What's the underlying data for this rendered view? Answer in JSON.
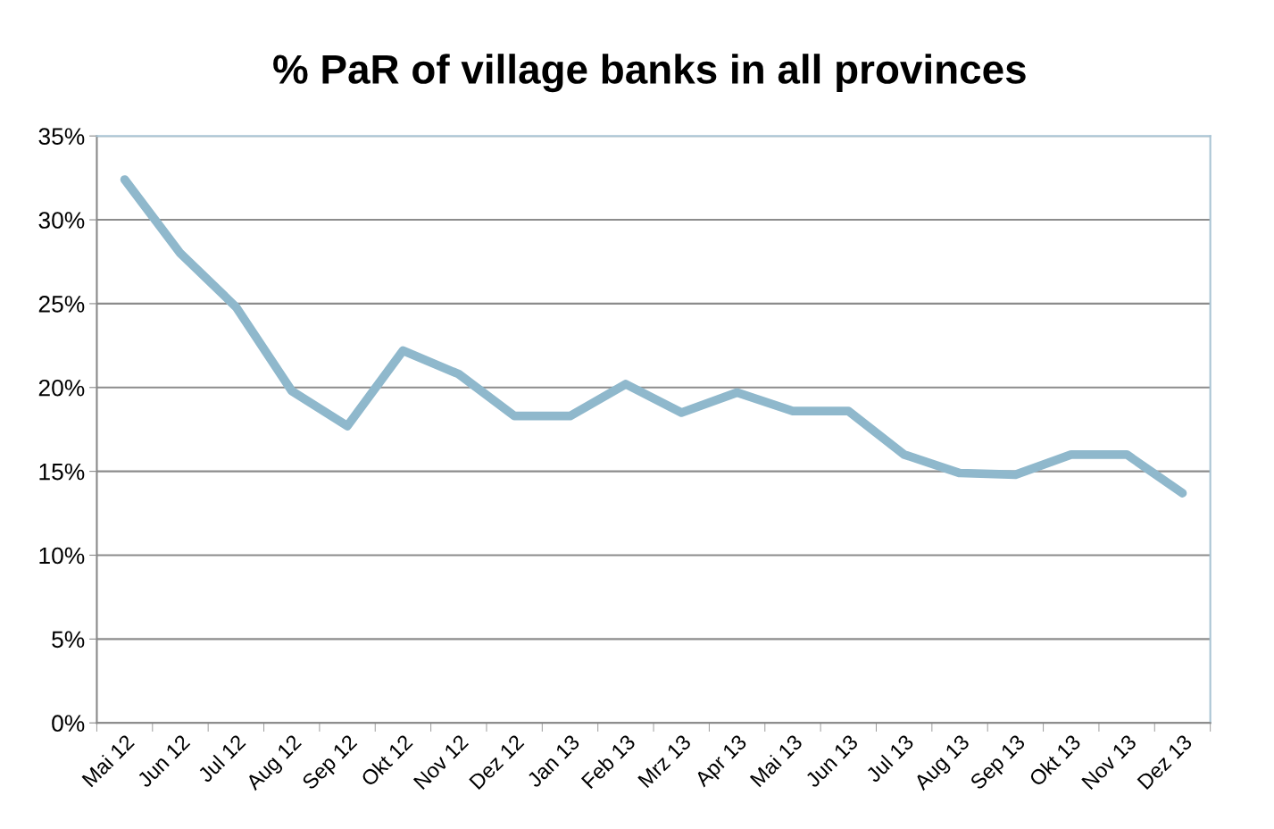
{
  "chart_data": {
    "type": "line",
    "title": "% PaR of village banks in all provinces",
    "categories": [
      "Mai 12",
      "Jun 12",
      "Jul 12",
      "Aug 12",
      "Sep 12",
      "Okt 12",
      "Nov 12",
      "Dez 12",
      "Jan 13",
      "Feb 13",
      "Mrz 13",
      "Apr 13",
      "Mai 13",
      "Jun 13",
      "Jul 13",
      "Aug 13",
      "Sep 13",
      "Okt 13",
      "Nov 13",
      "Dez 13"
    ],
    "series": [
      {
        "color": "#8fb8cc",
        "values": [
          32.4,
          28.0,
          24.8,
          19.8,
          17.7,
          22.2,
          20.8,
          18.3,
          18.3,
          20.2,
          18.5,
          19.7,
          18.6,
          18.6,
          16.0,
          14.9,
          14.8,
          16.0,
          16.0,
          13.7
        ]
      }
    ],
    "ylim": [
      0,
      35
    ],
    "yticks": [
      {
        "value": 0,
        "label": "0%"
      },
      {
        "value": 5,
        "label": "5%"
      },
      {
        "value": 10,
        "label": "10%"
      },
      {
        "value": 15,
        "label": "15%"
      },
      {
        "value": 20,
        "label": "20%"
      },
      {
        "value": 25,
        "label": "25%"
      },
      {
        "value": 30,
        "label": "30%"
      },
      {
        "value": 35,
        "label": "35%"
      }
    ],
    "grid": "y",
    "legend": false,
    "line_style": "solid"
  }
}
